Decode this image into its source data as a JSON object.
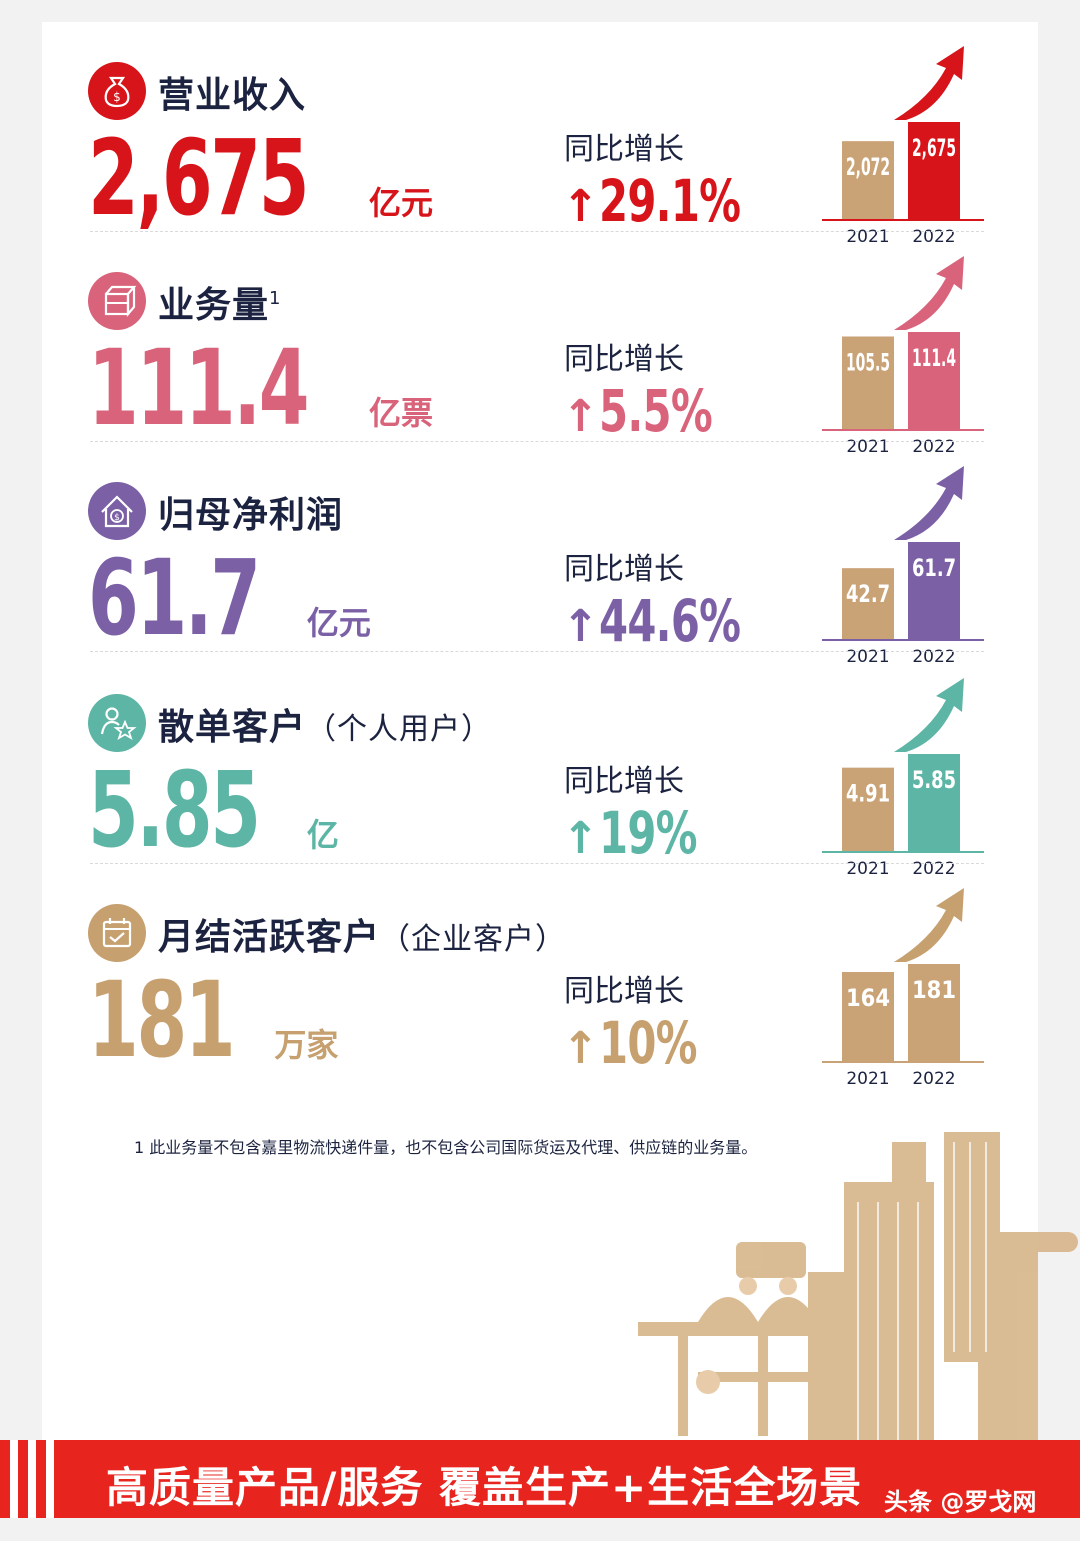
{
  "yoy_label": "同比增长",
  "arrow_symbol": "↑",
  "metrics": [
    {
      "title": "营业收入",
      "sup": "",
      "sub": "",
      "value": "2,675",
      "unit": "亿元",
      "yoy": "29.1%",
      "color": "#d7141a",
      "icon": "money-bag-icon"
    },
    {
      "title": "业务量",
      "sup": "1",
      "sub": "",
      "value": "111.4",
      "unit": "亿票",
      "yoy": "5.5%",
      "color": "#d9637b",
      "icon": "package-icon"
    },
    {
      "title": "归母净利润",
      "sup": "",
      "sub": "",
      "value": "61.7",
      "unit": "亿元",
      "yoy": "44.6%",
      "color": "#7b60a6",
      "icon": "house-dollar-icon"
    },
    {
      "title": "散单客户",
      "sup": "",
      "sub": "（个人用户）",
      "value": "5.85",
      "unit": "亿",
      "yoy": "19%",
      "color": "#5db5a5",
      "icon": "user-star-icon"
    },
    {
      "title": "月结活跃客户",
      "sup": "",
      "sub": "（企业客户）",
      "value": "181",
      "unit": "万家",
      "yoy": "10%",
      "color": "#c6a06f",
      "icon": "calendar-check-icon"
    }
  ],
  "chart_data": [
    {
      "type": "bar",
      "categories": [
        "2021",
        "2022"
      ],
      "values": [
        2072,
        2675
      ],
      "value_labels": [
        "2,072",
        "2,675"
      ],
      "colors": [
        "#c9a276",
        "#d7141a"
      ]
    },
    {
      "type": "bar",
      "categories": [
        "2021",
        "2022"
      ],
      "values": [
        105.5,
        111.4
      ],
      "value_labels": [
        "105.5",
        "111.4"
      ],
      "colors": [
        "#c9a276",
        "#d9637b"
      ]
    },
    {
      "type": "bar",
      "categories": [
        "2021",
        "2022"
      ],
      "values": [
        42.7,
        61.7
      ],
      "value_labels": [
        "42.7",
        "61.7"
      ],
      "colors": [
        "#c9a276",
        "#7b60a6"
      ]
    },
    {
      "type": "bar",
      "categories": [
        "2021",
        "2022"
      ],
      "values": [
        4.91,
        5.85
      ],
      "value_labels": [
        "4.91",
        "5.85"
      ],
      "colors": [
        "#c9a276",
        "#5db5a5"
      ]
    },
    {
      "type": "bar",
      "categories": [
        "2021",
        "2022"
      ],
      "values": [
        164,
        181
      ],
      "value_labels": [
        "164",
        "181"
      ],
      "colors": [
        "#c9a276",
        "#c9a276"
      ]
    }
  ],
  "footnote": "1 此业务量不包含嘉里物流快递件量，也不包含公司国际货运及代理、供应链的业务量。",
  "banner": {
    "text": "高质量产品/服务   覆盖生产+生活全场景",
    "color": "#e8241f"
  },
  "watermark": "头条 @罗戈网"
}
